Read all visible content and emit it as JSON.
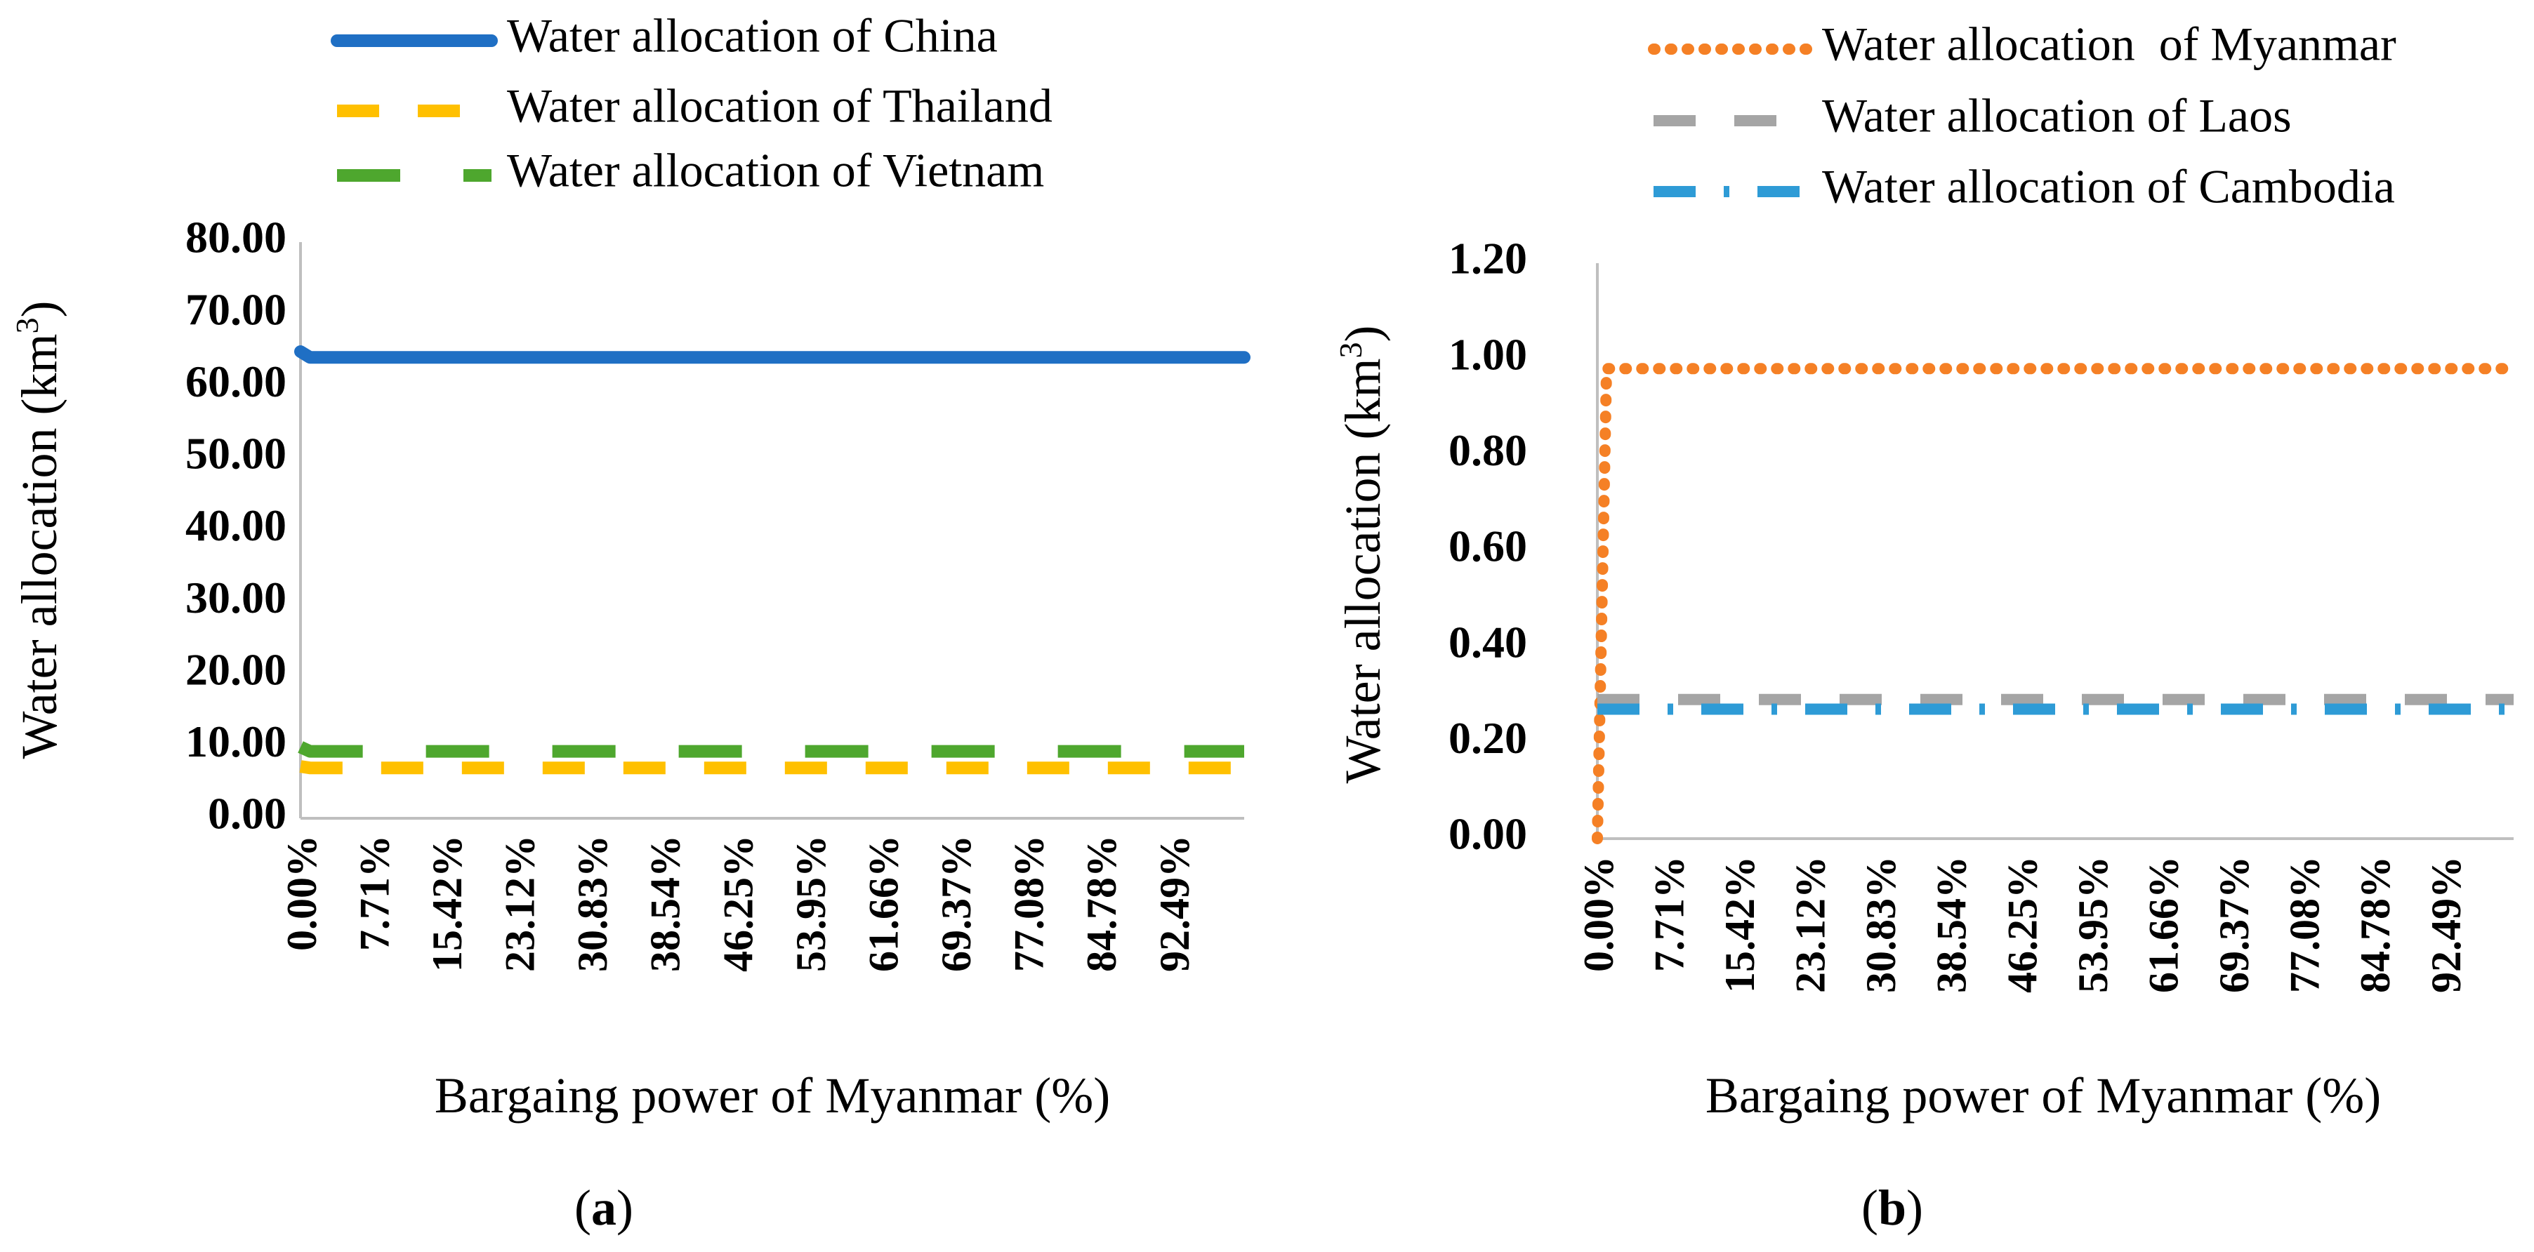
{
  "chart_data": [
    {
      "type": "line",
      "panel_label": "a",
      "xlabel": "Bargaing power of Myanmar (%)",
      "ylabel": "Water allocation (km",
      "ylabel_sup": "3",
      "ylabel_close": ")",
      "ylim": [
        0,
        80
      ],
      "xlim": [
        0,
        100
      ],
      "y_ticks": [
        "0.00",
        "10.00",
        "20.00",
        "30.00",
        "40.00",
        "50.00",
        "60.00",
        "70.00",
        "80.00"
      ],
      "y_tick_values": [
        0,
        10,
        20,
        30,
        40,
        50,
        60,
        70,
        80
      ],
      "x_ticks": [
        "0.00%",
        "7.71%",
        "15.42%",
        "23.12%",
        "30.83%",
        "38.54%",
        "46.25%",
        "53.95%",
        "61.66%",
        "69.37%",
        "77.08%",
        "84.78%",
        "92.49%"
      ],
      "x_tick_values": [
        0,
        7.71,
        15.42,
        23.12,
        30.83,
        38.54,
        46.25,
        53.95,
        61.66,
        69.37,
        77.08,
        84.78,
        92.49
      ],
      "legend_position": "top",
      "series": [
        {
          "name": "Water allocation of China",
          "color": "#1F6FC4",
          "style": "solid",
          "x": [
            0,
            1,
            100
          ],
          "y": [
            64.8,
            64.0,
            64.0
          ]
        },
        {
          "name": "Water allocation of Thailand",
          "color": "#FFC000",
          "style": "dash",
          "x": [
            0,
            1,
            100
          ],
          "y": [
            7.2,
            7.0,
            7.0
          ]
        },
        {
          "name": "Water allocation of Vietnam",
          "color": "#4EA72E",
          "style": "longdash",
          "x": [
            0,
            1,
            100
          ],
          "y": [
            9.9,
            9.3,
            9.3
          ]
        }
      ]
    },
    {
      "type": "line",
      "panel_label": "b",
      "xlabel": "Bargaing power of Myanmar (%)",
      "ylabel": "Water allocation (km",
      "ylabel_sup": "3",
      "ylabel_close": ")",
      "ylim": [
        0,
        1.2
      ],
      "xlim": [
        0,
        100
      ],
      "y_ticks": [
        "0.00",
        "0.20",
        "0.40",
        "0.60",
        "0.80",
        "1.00",
        "1.20"
      ],
      "y_tick_values": [
        0,
        0.2,
        0.4,
        0.6,
        0.8,
        1.0,
        1.2
      ],
      "x_ticks": [
        "0.00%",
        "7.71%",
        "15.42%",
        "23.12%",
        "30.83%",
        "38.54%",
        "46.25%",
        "53.95%",
        "61.66%",
        "69.37%",
        "77.08%",
        "84.78%",
        "92.49%"
      ],
      "x_tick_values": [
        0,
        7.71,
        15.42,
        23.12,
        30.83,
        38.54,
        46.25,
        53.95,
        61.66,
        69.37,
        77.08,
        84.78,
        92.49
      ],
      "legend_position": "top",
      "series": [
        {
          "name": "Water allocation  of Myanmar",
          "color": "#F58025",
          "style": "dot",
          "x": [
            0,
            1,
            100
          ],
          "y": [
            0.0,
            0.98,
            0.98
          ]
        },
        {
          "name": "Water allocation of Laos",
          "color": "#A5A5A5",
          "style": "dash",
          "x": [
            0,
            100
          ],
          "y": [
            0.29,
            0.29
          ]
        },
        {
          "name": "Water allocation of Cambodia",
          "color": "#2E9BD6",
          "style": "dashdot",
          "x": [
            0,
            100
          ],
          "y": [
            0.27,
            0.27
          ]
        }
      ]
    }
  ]
}
